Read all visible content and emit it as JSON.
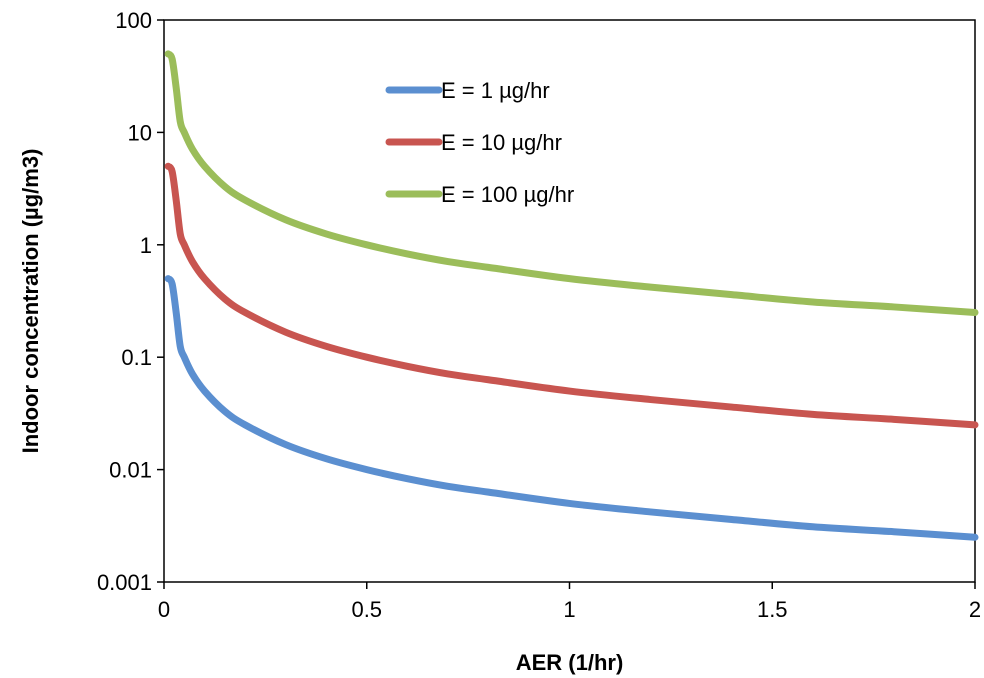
{
  "chart_data": {
    "type": "line",
    "title": "",
    "xlabel": "AER (1/hr)",
    "ylabel": "Indoor concentration (µg/m3)",
    "xlim": [
      0,
      2
    ],
    "ylim": [
      0.001,
      100
    ],
    "yscale": "log",
    "grid": false,
    "legend_position": "top-center",
    "x_ticks": [
      "0",
      "0.5",
      "1",
      "1.5",
      "2"
    ],
    "y_ticks": [
      "0.001",
      "0.01",
      "0.1",
      "1",
      "10",
      "100"
    ],
    "x": [
      0.01,
      0.02,
      0.03,
      0.04,
      0.05,
      0.07,
      0.1,
      0.15,
      0.2,
      0.3,
      0.4,
      0.5,
      0.6,
      0.7,
      0.8,
      1.0,
      1.2,
      1.4,
      1.6,
      1.8,
      2.0
    ],
    "series": [
      {
        "name": "E = 1 µg/hr",
        "color": "#5b8fd0",
        "values": [
          0.5,
          0.45,
          0.25,
          0.125,
          0.1,
          0.071,
          0.05,
          0.033,
          0.025,
          0.0167,
          0.0125,
          0.01,
          0.0083,
          0.0071,
          0.0063,
          0.005,
          0.0042,
          0.0036,
          0.0031,
          0.0028,
          0.0025
        ]
      },
      {
        "name": "E = 10 µg/hr",
        "color": "#c85550",
        "values": [
          5,
          4.5,
          2.5,
          1.25,
          1.0,
          0.71,
          0.5,
          0.33,
          0.25,
          0.167,
          0.125,
          0.1,
          0.083,
          0.071,
          0.063,
          0.05,
          0.042,
          0.036,
          0.031,
          0.028,
          0.025
        ]
      },
      {
        "name": "E = 100 µg/hr",
        "color": "#9bbd5a",
        "values": [
          50,
          45,
          25,
          12.5,
          10,
          7.1,
          5,
          3.3,
          2.5,
          1.67,
          1.25,
          1.0,
          0.83,
          0.71,
          0.63,
          0.5,
          0.42,
          0.36,
          0.31,
          0.28,
          0.25
        ]
      }
    ]
  }
}
